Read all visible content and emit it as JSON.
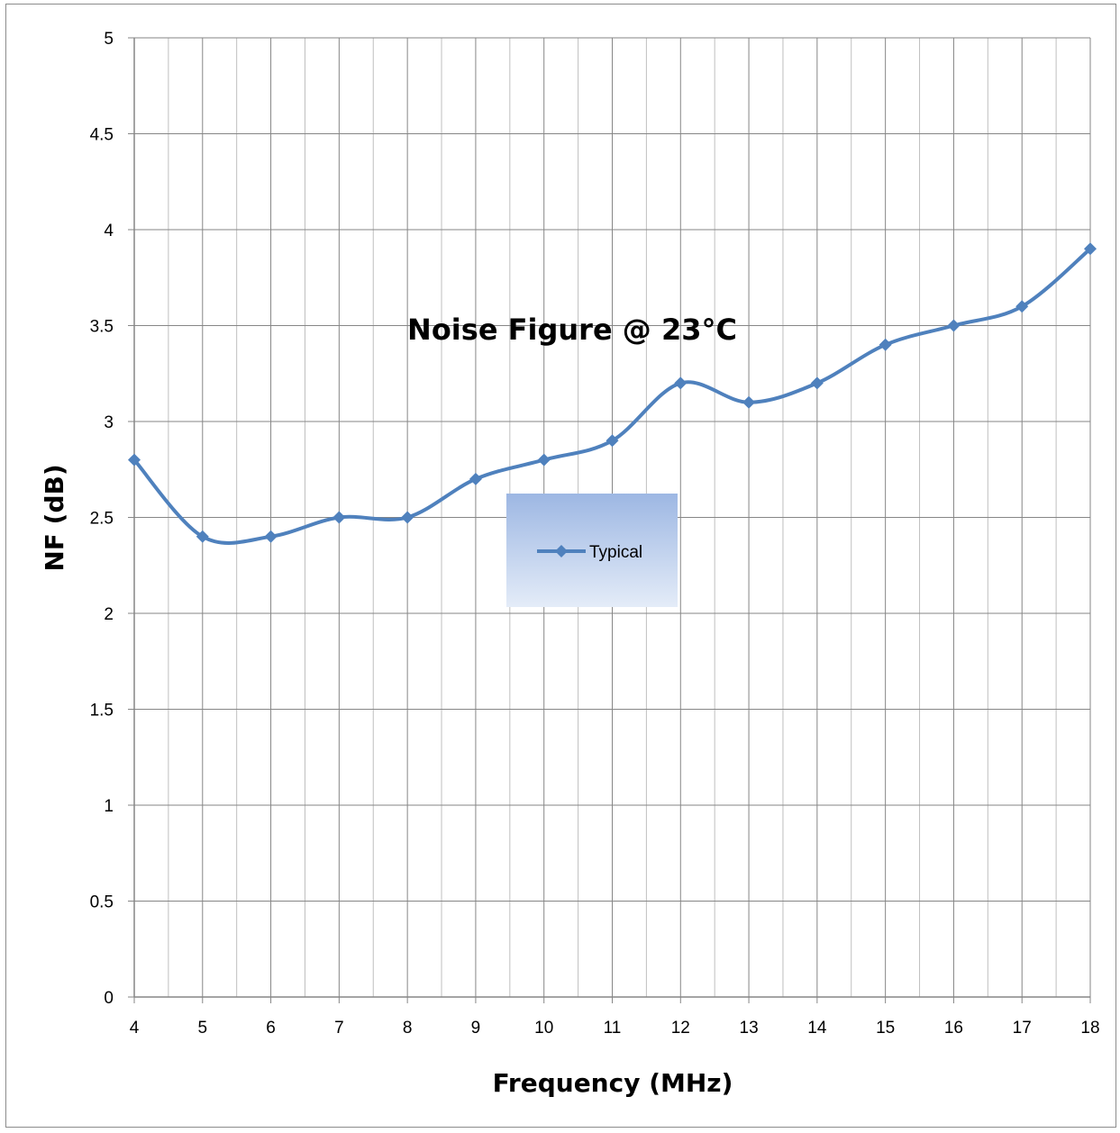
{
  "chart_data": {
    "type": "line",
    "title": "Noise Figure @ 23°C",
    "xlabel": "Frequency (MHz)",
    "ylabel": "NF  (dB)",
    "xlim": [
      4,
      18
    ],
    "ylim": [
      0,
      5
    ],
    "x_ticks": [
      4,
      5,
      6,
      7,
      8,
      9,
      10,
      11,
      12,
      13,
      14,
      15,
      16,
      17,
      18
    ],
    "y_ticks": [
      "0",
      "0.5",
      "1",
      "1.5",
      "2",
      "2.5",
      "3",
      "3.5",
      "4",
      "4.5",
      "5"
    ],
    "grid": true,
    "minor_x_grid": true,
    "legend_position": "center",
    "smooth": true,
    "series": [
      {
        "name": "Typical",
        "color": "#4f81bd",
        "marker": "diamond",
        "x": [
          4,
          5,
          6,
          7,
          8,
          9,
          10,
          11,
          12,
          13,
          14,
          15,
          16,
          17,
          18
        ],
        "y": [
          2.8,
          2.4,
          2.4,
          2.5,
          2.5,
          2.7,
          2.8,
          2.9,
          3.2,
          3.1,
          3.2,
          3.4,
          3.5,
          3.6,
          3.9
        ]
      }
    ]
  }
}
